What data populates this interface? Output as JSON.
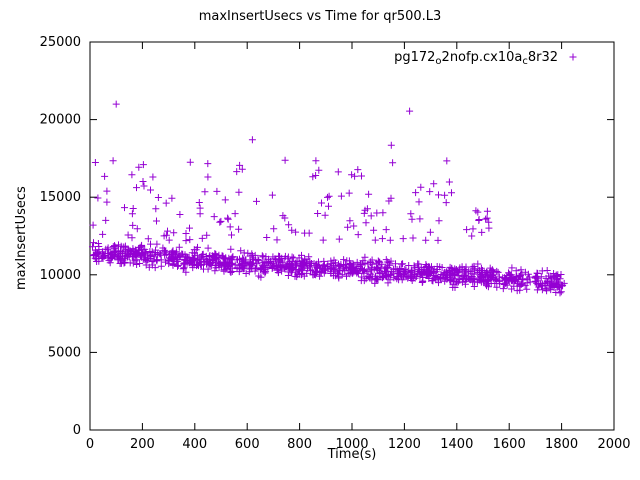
{
  "chart_data": {
    "type": "scatter",
    "title": "maxInsertUsecs vs Time for qr500.L3",
    "xlabel": "Time(s)",
    "ylabel": "maxInsertUsecs",
    "xlim": [
      0,
      2000
    ],
    "ylim": [
      0,
      25000
    ],
    "xticks": [
      0,
      200,
      400,
      600,
      800,
      1000,
      1200,
      1400,
      1600,
      1800,
      2000
    ],
    "yticks": [
      0,
      5000,
      10000,
      15000,
      20000,
      25000
    ],
    "grid": false,
    "legend_position": "top-right-inside",
    "marker": {
      "shape": "plus",
      "color": "#9400D3",
      "size": 7
    },
    "series": [
      {
        "name": "pg172_o2nofp.cx10a_c8r32",
        "name_parts": [
          {
            "t": "pg172"
          },
          {
            "t": "o",
            "sub": true
          },
          {
            "t": "2nofp.cx10a"
          },
          {
            "t": "c",
            "sub": true
          },
          {
            "t": "8r32"
          }
        ],
        "band": {
          "count": 1150,
          "x_min": 5,
          "x_max": 1810,
          "y_start": 11400,
          "y_end": 9500,
          "jitter": 650,
          "seed": 101
        },
        "outliers": {
          "count": 140,
          "x_min": 5,
          "x_max": 1550,
          "y_min": 12200,
          "y_max": 17400,
          "bias": 1.6,
          "tail_start": 1380,
          "tail_y_max": 14200,
          "seed": 202
        },
        "extreme_points": [
          [
            100,
            21000
          ],
          [
            1220,
            20550
          ],
          [
            620,
            18700
          ],
          [
            1150,
            18350
          ],
          [
            383,
            17250
          ],
          [
            560,
            16650
          ],
          [
            160,
            16450
          ],
          [
            240,
            16300
          ],
          [
            1010,
            16350
          ],
          [
            450,
            16300
          ],
          [
            1330,
            15150
          ],
          [
            30,
            14950
          ],
          [
            12,
            13200
          ]
        ]
      }
    ]
  }
}
